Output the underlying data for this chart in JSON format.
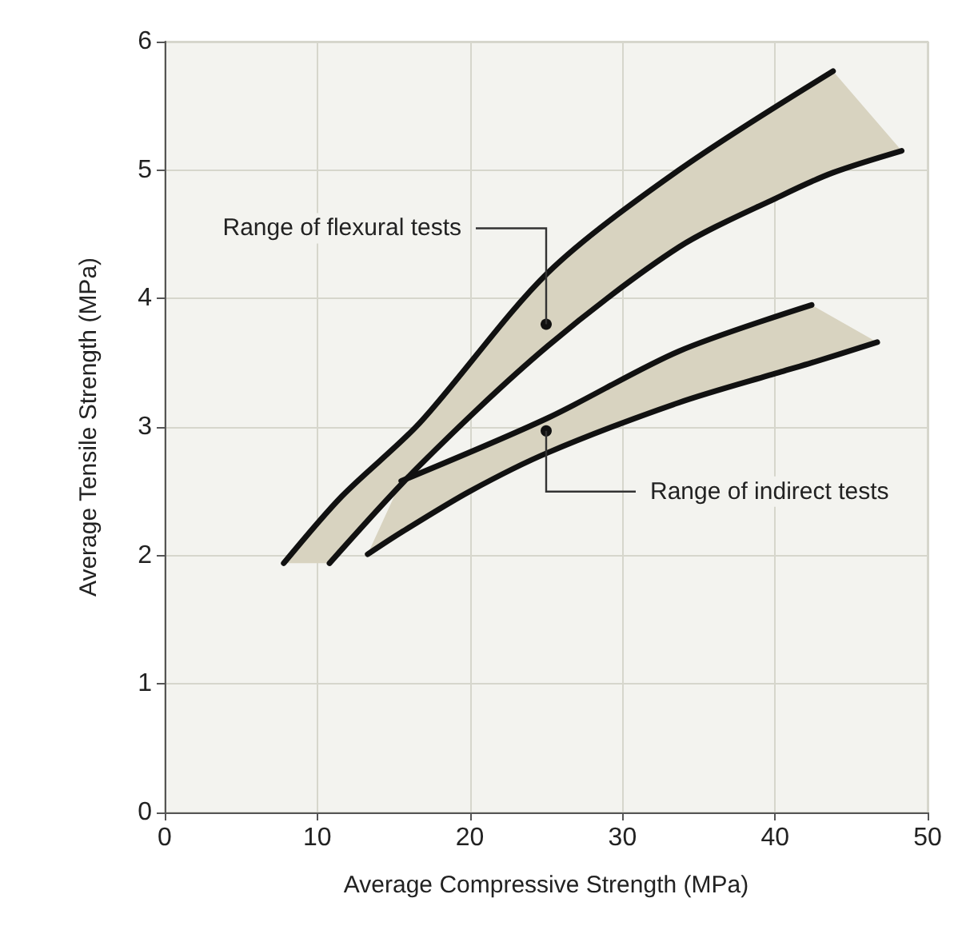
{
  "chart_data": {
    "type": "line",
    "xlabel": "Average Compressive Strength (MPa)",
    "ylabel": "Average Tensile Strength (MPa)",
    "xlim": [
      0,
      50
    ],
    "xticks": [
      0,
      10,
      20,
      30,
      40,
      50
    ],
    "ylim": [
      0,
      6
    ],
    "yticks": [
      0,
      1,
      2,
      3,
      4,
      5,
      6
    ],
    "grid": true,
    "marker": "none",
    "line_style": "solid",
    "series": [
      {
        "color": "#111111",
        "x": [
          7.8,
          11.6,
          16.7,
          25.1,
          33.7,
          43.8
        ],
        "values": [
          1.94,
          2.46,
          3.03,
          4.2,
          5.0,
          5.77
        ]
      },
      {
        "color": "#111111",
        "x": [
          15.5,
          25.1,
          33.7,
          42.4
        ],
        "values": [
          2.58,
          3.07,
          3.59,
          3.95
        ]
      },
      {
        "color": "#111111",
        "x": [
          7.8,
          10.8,
          16.7,
          25.1,
          33.7,
          40.4,
          43.8,
          48.3
        ],
        "values": [
          null,
          1.94,
          2.7,
          3.63,
          4.4,
          4.8,
          4.98,
          5.15
        ],
        "lower": [
          1.94,
          1.94,
          2.7,
          3.63,
          4.4,
          4.8,
          4.98,
          5.15
        ],
        "upper": [
          1.94,
          2.35,
          3.03,
          4.2,
          5.0,
          5.52,
          5.77,
          5.15
        ]
      },
      {
        "color": "#111111",
        "x": [
          13.3,
          15.5,
          20.0,
          25.1,
          33.7,
          40.4,
          42.4,
          46.7
        ],
        "values": [
          2.01,
          2.18,
          2.5,
          2.8,
          3.19,
          3.43,
          3.5,
          3.66
        ],
        "lower": [
          2.01,
          2.18,
          2.5,
          2.8,
          3.19,
          3.43,
          3.5,
          3.66
        ],
        "upper": [
          2.01,
          2.58,
          2.8,
          3.07,
          3.59,
          3.87,
          3.95,
          3.66
        ]
      }
    ],
    "annotations": [
      {
        "text": "Range of flexural tests",
        "x": 25,
        "y": 3.8
      },
      {
        "text": "Range of indirect tests",
        "x": 25,
        "y": 2.97
      }
    ]
  }
}
